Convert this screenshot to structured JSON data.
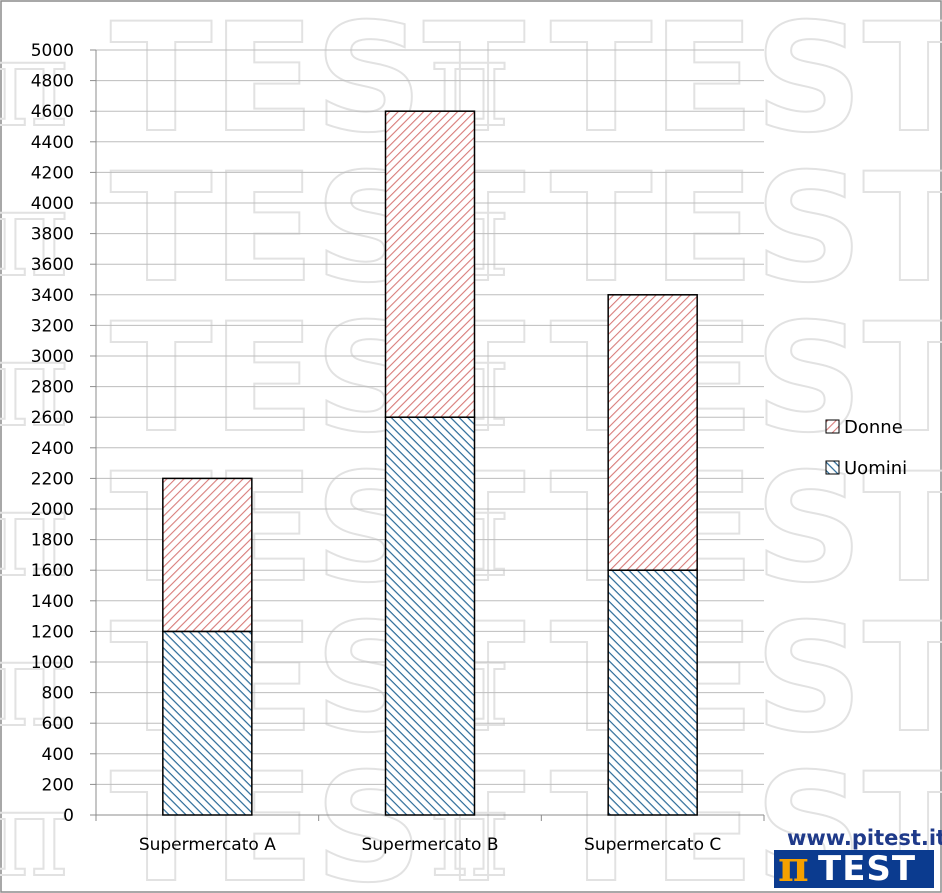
{
  "chart_data": {
    "type": "bar",
    "stacked": true,
    "categories": [
      "Supermercato A",
      "Supermercato B",
      "Supermercato C"
    ],
    "series": [
      {
        "name": "Uomini",
        "values": [
          1200,
          2600,
          1600
        ],
        "color": "#1f5f8b",
        "fill": "#c9dff0"
      },
      {
        "name": "Donne",
        "values": [
          1000,
          2000,
          1800
        ],
        "color": "#c0504d",
        "fill": "#f6dcdc"
      }
    ],
    "ylim": [
      0,
      5000
    ],
    "ytick_step": 200,
    "yticks": [
      "0",
      "200",
      "400",
      "600",
      "800",
      "1000",
      "1200",
      "1400",
      "1600",
      "1800",
      "2000",
      "2200",
      "2400",
      "2600",
      "2800",
      "3000",
      "3200",
      "3400",
      "3600",
      "3800",
      "4000",
      "4200",
      "4400",
      "4600",
      "4800",
      "5000"
    ],
    "grid": true,
    "legend": {
      "position": "right",
      "entries": [
        "Donne",
        "Uomini"
      ]
    },
    "title": "",
    "xlabel": "",
    "ylabel": ""
  },
  "watermark": {
    "text": "TEST",
    "symbol": "π"
  },
  "logo": {
    "url": "www.pitest.it",
    "symbol": "π",
    "name": "TEST"
  }
}
